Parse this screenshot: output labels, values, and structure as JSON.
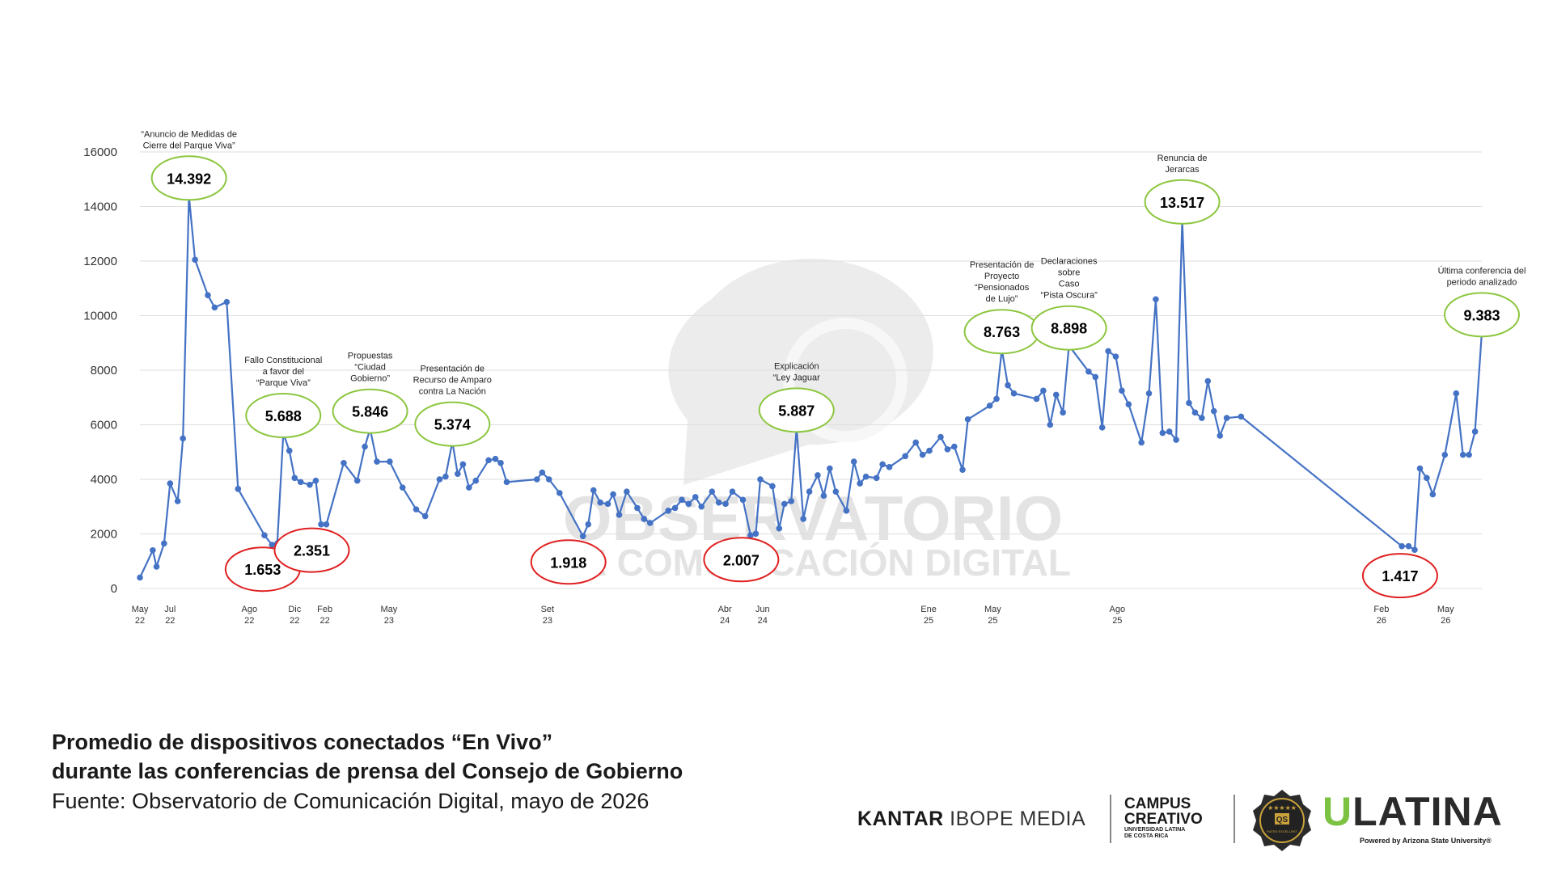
{
  "chart_data": {
    "type": "line",
    "title": "Promedio de dispositivos conectados “En Vivo” durante las conferencias de prensa del Consejo de Gobierno",
    "title_lines": [
      "Promedio de dispositivos conectados “En Vivo”",
      "durante las conferencias de prensa del Consejo de Gobierno"
    ],
    "source": "Fuente: Observatorio de Comunicación Digital, mayo de 2026",
    "ylim": [
      0,
      16000
    ],
    "yticks": [
      "0",
      "2000",
      "4000",
      "6000",
      "8000",
      "10000",
      "12000",
      "14000",
      "16000"
    ],
    "grid": true,
    "line_color": "#4472c4",
    "xticks": [
      {
        "pos": 0,
        "month": "May",
        "year": "22"
      },
      {
        "pos": 4,
        "month": "Jul",
        "year": "22"
      },
      {
        "pos": 14.5,
        "month": "Ago",
        "year": "22"
      },
      {
        "pos": 20.5,
        "month": "Dic",
        "year": "22"
      },
      {
        "pos": 24.5,
        "month": "Feb",
        "year": "22"
      },
      {
        "pos": 33,
        "month": "May",
        "year": "23"
      },
      {
        "pos": 54,
        "month": "Set",
        "year": "23"
      },
      {
        "pos": 77.5,
        "month": "Abr",
        "year": "24"
      },
      {
        "pos": 82.5,
        "month": "Jun",
        "year": "24"
      },
      {
        "pos": 104.5,
        "month": "Ene",
        "year": "25"
      },
      {
        "pos": 113,
        "month": "May",
        "year": "25"
      },
      {
        "pos": 129.5,
        "month": "Ago",
        "year": "25"
      },
      {
        "pos": 164.5,
        "month": "Feb",
        "year": "26"
      },
      {
        "pos": 173,
        "month": "May",
        "year": "26"
      }
    ],
    "series": [
      {
        "points": [
          [
            0,
            400
          ],
          [
            1.7,
            1400
          ],
          [
            2.2,
            800
          ],
          [
            3.2,
            1650
          ],
          [
            4,
            3850
          ],
          [
            5,
            3200
          ],
          [
            5.7,
            5500
          ],
          [
            6.5,
            14392
          ],
          [
            7.3,
            12050
          ],
          [
            9,
            10750
          ],
          [
            9.9,
            10300
          ],
          [
            11.5,
            10500
          ],
          [
            13,
            3650
          ],
          [
            16.5,
            1950
          ],
          [
            17.5,
            1600
          ],
          [
            18.2,
            1653
          ],
          [
            19,
            5688
          ],
          [
            19.8,
            5050
          ],
          [
            20.5,
            4050
          ],
          [
            21.3,
            3900
          ],
          [
            22.5,
            3800
          ],
          [
            23.3,
            3950
          ],
          [
            24,
            2350
          ],
          [
            24.7,
            2351
          ],
          [
            27,
            4600
          ],
          [
            28.8,
            3950
          ],
          [
            29.8,
            5200
          ],
          [
            30.5,
            5846
          ],
          [
            31.4,
            4650
          ],
          [
            33.1,
            4650
          ],
          [
            34.8,
            3700
          ],
          [
            36.6,
            2900
          ],
          [
            37.8,
            2650
          ],
          [
            39.7,
            4000
          ],
          [
            40.5,
            4100
          ],
          [
            41.4,
            5374
          ],
          [
            42.1,
            4200
          ],
          [
            42.8,
            4550
          ],
          [
            43.6,
            3700
          ],
          [
            44.5,
            3950
          ],
          [
            46.2,
            4700
          ],
          [
            47.1,
            4750
          ],
          [
            47.8,
            4600
          ],
          [
            48.6,
            3900
          ],
          [
            52.6,
            4000
          ],
          [
            53.3,
            4250
          ],
          [
            54.2,
            4000
          ],
          [
            55.6,
            3500
          ],
          [
            58.7,
            1918
          ],
          [
            59.4,
            2350
          ],
          [
            60.1,
            3600
          ],
          [
            61,
            3150
          ],
          [
            62,
            3100
          ],
          [
            62.7,
            3450
          ],
          [
            63.5,
            2700
          ],
          [
            64.5,
            3550
          ],
          [
            65.9,
            2950
          ],
          [
            66.8,
            2550
          ],
          [
            67.6,
            2400
          ],
          [
            70,
            2850
          ],
          [
            70.9,
            2950
          ],
          [
            71.8,
            3250
          ],
          [
            72.7,
            3100
          ],
          [
            73.6,
            3350
          ],
          [
            74.4,
            3000
          ],
          [
            75.8,
            3550
          ],
          [
            76.7,
            3150
          ],
          [
            77.6,
            3100
          ],
          [
            78.5,
            3550
          ],
          [
            79.9,
            3250
          ],
          [
            80.9,
            1950
          ],
          [
            81.6,
            2007
          ],
          [
            82.2,
            4000
          ],
          [
            83.8,
            3750
          ],
          [
            84.7,
            2200
          ],
          [
            85.4,
            3100
          ],
          [
            86.3,
            3200
          ],
          [
            87,
            5887
          ],
          [
            87.9,
            2550
          ],
          [
            88.7,
            3550
          ],
          [
            89.8,
            4150
          ],
          [
            90.6,
            3400
          ],
          [
            91.4,
            4400
          ],
          [
            92.2,
            3550
          ],
          [
            93.6,
            2850
          ],
          [
            94.6,
            4650
          ],
          [
            95.4,
            3850
          ],
          [
            96.2,
            4100
          ],
          [
            97.6,
            4050
          ],
          [
            98.4,
            4550
          ],
          [
            99.3,
            4450
          ],
          [
            101.4,
            4850
          ],
          [
            102.8,
            5350
          ],
          [
            103.7,
            4900
          ],
          [
            104.6,
            5050
          ],
          [
            106.1,
            5550
          ],
          [
            107,
            5100
          ],
          [
            107.9,
            5200
          ],
          [
            109,
            4350
          ],
          [
            109.7,
            6200
          ],
          [
            112.6,
            6700
          ],
          [
            113.5,
            6950
          ],
          [
            114.2,
            8763
          ],
          [
            115,
            7450
          ],
          [
            115.8,
            7150
          ],
          [
            118.8,
            6950
          ],
          [
            119.7,
            7250
          ],
          [
            120.6,
            6000
          ],
          [
            121.4,
            7100
          ],
          [
            122.3,
            6450
          ],
          [
            123.1,
            8898
          ],
          [
            125.7,
            7950
          ],
          [
            126.6,
            7750
          ],
          [
            127.5,
            5900
          ],
          [
            128.3,
            8700
          ],
          [
            129.3,
            8500
          ],
          [
            130.1,
            7250
          ],
          [
            131,
            6750
          ],
          [
            132.7,
            5350
          ],
          [
            133.7,
            7150
          ],
          [
            134.6,
            10600
          ],
          [
            135.5,
            5700
          ],
          [
            136.4,
            5750
          ],
          [
            137.3,
            5450
          ],
          [
            138.1,
            13517
          ],
          [
            139,
            6800
          ],
          [
            139.8,
            6450
          ],
          [
            140.7,
            6250
          ],
          [
            141.5,
            7600
          ],
          [
            142.3,
            6500
          ],
          [
            143.1,
            5600
          ],
          [
            144,
            6250
          ],
          [
            145.9,
            6300
          ],
          [
            167.2,
            1550
          ],
          [
            168.1,
            1550
          ],
          [
            168.9,
            1417
          ],
          [
            169.6,
            4400
          ],
          [
            170.5,
            4050
          ],
          [
            171.3,
            3450
          ],
          [
            172.9,
            4900
          ],
          [
            174.4,
            7150
          ],
          [
            175.3,
            4900
          ],
          [
            176.1,
            4900
          ],
          [
            176.9,
            5750
          ],
          [
            177.8,
            9383
          ]
        ]
      }
    ],
    "callouts": [
      {
        "value": "14.392",
        "x": 6.5,
        "y": 14392,
        "color": "green",
        "label": "“Anuncio de Medidas de Cierre del Parque Viva”",
        "label_lines": [
          "“Anuncio de Medidas de",
          "Cierre del Parque Viva”"
        ]
      },
      {
        "value": "1.653",
        "x": 18.2,
        "y": 1653,
        "color": "red"
      },
      {
        "value": "5.688",
        "x": 19,
        "y": 5688,
        "color": "green",
        "label": "Fallo Constitucional a favor del “Parque Viva”",
        "label_lines": [
          "Fallo Constitucional",
          "a favor del",
          "“Parque Viva”"
        ]
      },
      {
        "value": "2.351",
        "x": 24.7,
        "y": 2351,
        "color": "red"
      },
      {
        "value": "5.846",
        "x": 30.5,
        "y": 5846,
        "color": "green",
        "label": "Propuestas “Ciudad Gobierno”",
        "label_lines": [
          "Propuestas",
          "“Ciudad",
          "Gobierno”"
        ]
      },
      {
        "value": "5.374",
        "x": 41.4,
        "y": 5374,
        "color": "green",
        "label": "Presentación de Recurso de Amparo contra La Nación",
        "label_lines": [
          "Presentación de",
          "Recurso de Amparo",
          "contra La Nación"
        ]
      },
      {
        "value": "1.918",
        "x": 58.7,
        "y": 1918,
        "color": "red"
      },
      {
        "value": "2.007",
        "x": 81.6,
        "y": 2007,
        "color": "red"
      },
      {
        "value": "5.887",
        "x": 87,
        "y": 5887,
        "color": "green",
        "label": "Explicación “Ley Jaguar",
        "label_lines": [
          "Explicación",
          "“Ley Jaguar"
        ]
      },
      {
        "value": "8.763",
        "x": 114.2,
        "y": 8763,
        "color": "green",
        "label": "Presentación de Proyecto “Pensionados de Lujo”",
        "label_lines": [
          "Presentación de",
          "Proyecto",
          "“Pensionados",
          "de Lujo”"
        ]
      },
      {
        "value": "8.898",
        "x": 123.1,
        "y": 8898,
        "color": "green",
        "label": "Declaraciones sobre Caso “Pista Oscura”",
        "label_lines": [
          "Declaraciones",
          "sobre",
          "Caso",
          "“Pista Oscura”"
        ]
      },
      {
        "value": "13.517",
        "x": 138.1,
        "y": 13517,
        "color": "green",
        "label": "Renuncia de Jerarcas",
        "label_lines": [
          "Renuncia de",
          "Jerarcas"
        ]
      },
      {
        "value": "1.417",
        "x": 168.9,
        "y": 1417,
        "color": "red"
      },
      {
        "value": "9.383",
        "x": 177.8,
        "y": 9383,
        "color": "green",
        "label": "Última conferencia del periodo analizado",
        "label_lines": [
          "Última conferencia del",
          "periodo analizado"
        ]
      }
    ],
    "colors": {
      "green": "#8cc63f",
      "red": "#e02020"
    }
  },
  "watermark": {
    "line1": "OBSERVATORIO",
    "line2": "DE COMUNICACIÓN DIGITAL"
  },
  "logos": {
    "kantar_bold": "KANTAR",
    "kantar_light": "IBOPE MEDIA",
    "campus_line1": "CAMPUS",
    "campus_line2": "CREATIVO",
    "campus_sub1": "UNIVERSIDAD LATINA",
    "campus_sub2": "DE COSTA RICA",
    "badge_stars": "★★★★★",
    "badge_text": "QS",
    "badge_sub": "RATED EXCELLENT",
    "ulatina_u": "U",
    "ulatina_rest": "LATINA",
    "ulatina_powered": "Powered by Arizona State University®"
  }
}
